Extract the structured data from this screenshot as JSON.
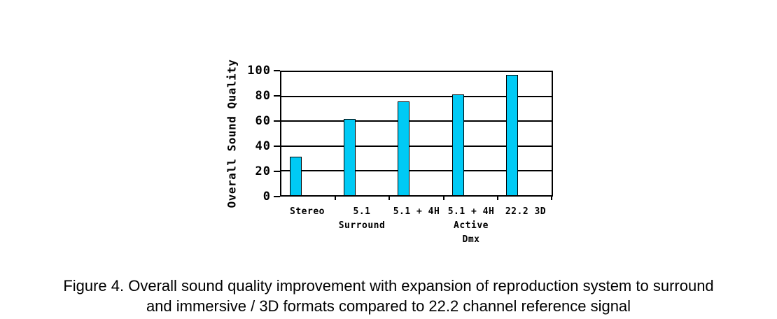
{
  "chart_data": {
    "type": "bar",
    "title": "",
    "xlabel": "",
    "ylabel": "Overall Sound Quality",
    "categories": [
      "Stereo",
      "5.1\nSurround",
      "5.1 + 4H",
      "5.1 + 4H\nActive\nDmx",
      "22.2 3D"
    ],
    "values": [
      31,
      62,
      76,
      82,
      98
    ],
    "ylim": [
      0,
      100
    ],
    "yticks": [
      0,
      20,
      40,
      60,
      80,
      100
    ],
    "grid": true,
    "legend": false,
    "bar_color": "#00CAF5",
    "bar_border_color": "#000000",
    "axis_color": "#000000"
  },
  "caption": {
    "line1": "Figure 4. Overall sound quality improvement with expansion of reproduction system to surround",
    "line2": "and immersive / 3D formats compared to 22.2 channel reference signal"
  }
}
